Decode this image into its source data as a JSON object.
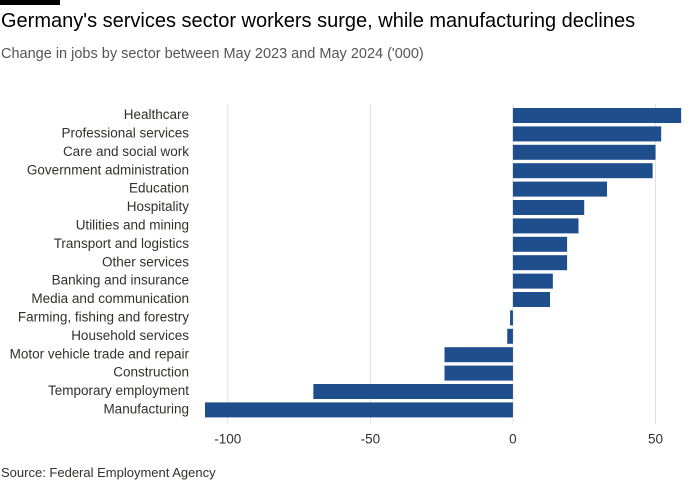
{
  "title": "Germany's services sector workers surge, while manufacturing declines",
  "subtitle": "Change in jobs by sector between May 2023 and May 2024 ('000)",
  "source": "Source: Federal Employment Agency",
  "colors": {
    "bar": "#1f4e8c",
    "grid": "#e0e0e0",
    "text": "#33302e"
  },
  "chart_data": {
    "type": "bar",
    "orientation": "horizontal",
    "title": "Germany's services sector workers surge, while manufacturing declines",
    "subtitle": "Change in jobs by sector between May 2023 and May 2024 ('000)",
    "xlabel": "",
    "ylabel": "",
    "xlim": [
      -108,
      60
    ],
    "xticks": [
      -100,
      -50,
      0,
      50
    ],
    "xtick_labels": [
      "-100",
      "-50",
      "0",
      "50"
    ],
    "grid": true,
    "categories": [
      "Healthcare",
      "Professional services",
      "Care and social work",
      "Government administration",
      "Education",
      "Hospitality",
      "Utilities and mining",
      "Transport and logistics",
      "Other services",
      "Banking and insurance",
      "Media and communication",
      "Farming, fishing and forestry",
      "Household services",
      "Motor vehicle trade and repair",
      "Construction",
      "Temporary employment",
      "Manufacturing"
    ],
    "values": [
      59,
      52,
      50,
      49,
      33,
      25,
      23,
      19,
      19,
      14,
      13,
      -1,
      -2,
      -24,
      -24,
      -70,
      -108
    ]
  }
}
